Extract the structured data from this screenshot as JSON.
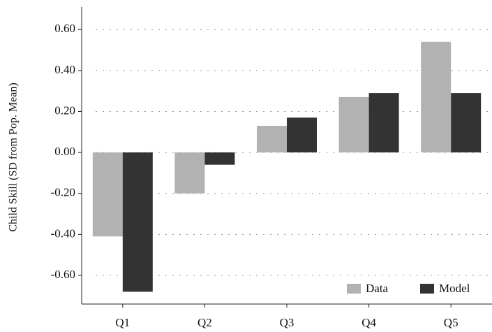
{
  "chart_data": {
    "type": "bar",
    "y_label": "Child Skill (SD from Pop. Mean)",
    "categories": [
      "Q1",
      "Q2",
      "Q3",
      "Q4",
      "Q5"
    ],
    "series": [
      {
        "name": "Data",
        "color": "#b2b2b2",
        "values": [
          -0.41,
          -0.2,
          0.13,
          0.27,
          0.54
        ]
      },
      {
        "name": "Model",
        "color": "#333333",
        "values": [
          -0.68,
          -0.06,
          0.17,
          0.29,
          0.29
        ]
      }
    ],
    "ylim": [
      -0.74,
      0.71
    ],
    "yticks": [
      {
        "value": -0.6,
        "label": "-0.60"
      },
      {
        "value": -0.4,
        "label": "-0.40"
      },
      {
        "value": -0.2,
        "label": "-0.20"
      },
      {
        "value": 0,
        "label": "0.00"
      },
      {
        "value": 0.2,
        "label": "0.20"
      },
      {
        "value": 0.4,
        "label": "0.40"
      },
      {
        "value": 0.6,
        "label": "0.60"
      }
    ],
    "grid": true,
    "legend": "lower right"
  }
}
